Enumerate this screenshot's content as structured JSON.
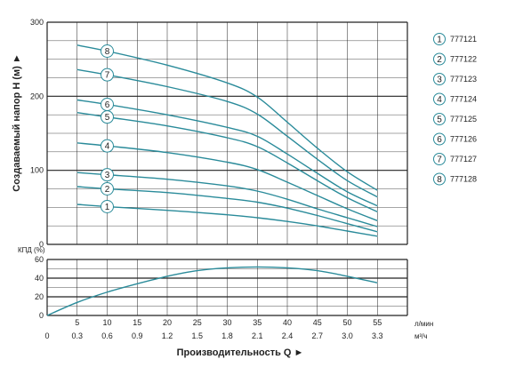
{
  "chart_data": [
    {
      "type": "line",
      "title": "",
      "ylabel": "Создаваемый напор Н (м)",
      "ylim": [
        0,
        300
      ],
      "yticks": [
        "0",
        "100",
        "200",
        "300"
      ],
      "xlim_lpm": [
        0,
        55
      ],
      "grid": true,
      "legend_position": "right",
      "series": [
        {
          "name": "777121",
          "marker": "1",
          "flow_lpm": [
            5,
            10,
            20,
            30,
            35,
            40,
            45,
            50,
            55
          ],
          "head": [
            54,
            51,
            46,
            40,
            36,
            31,
            25,
            18,
            11
          ]
        },
        {
          "name": "777122",
          "marker": "2",
          "flow_lpm": [
            5,
            10,
            20,
            30,
            35,
            40,
            45,
            50,
            55
          ],
          "head": [
            78,
            75,
            70,
            62,
            57,
            49,
            39,
            28,
            17
          ]
        },
        {
          "name": "777123",
          "marker": "3",
          "flow_lpm": [
            5,
            10,
            20,
            30,
            35,
            40,
            45,
            50,
            55
          ],
          "head": [
            97,
            94,
            88,
            79,
            72,
            61,
            48,
            36,
            24
          ]
        },
        {
          "name": "777124",
          "marker": "4",
          "flow_lpm": [
            5,
            10,
            20,
            30,
            35,
            40,
            45,
            50,
            55
          ],
          "head": [
            137,
            133,
            124,
            111,
            101,
            84,
            66,
            48,
            32
          ]
        },
        {
          "name": "777125",
          "marker": "5",
          "flow_lpm": [
            5,
            10,
            20,
            30,
            35,
            40,
            45,
            50,
            55
          ],
          "head": [
            178,
            172,
            160,
            144,
            132,
            110,
            86,
            63,
            44
          ]
        },
        {
          "name": "777126",
          "marker": "6",
          "flow_lpm": [
            5,
            10,
            20,
            30,
            35,
            40,
            45,
            50,
            55
          ],
          "head": [
            195,
            189,
            175,
            158,
            146,
            122,
            96,
            71,
            52
          ]
        },
        {
          "name": "777127",
          "marker": "7",
          "flow_lpm": [
            5,
            10,
            20,
            30,
            35,
            40,
            45,
            50,
            55
          ],
          "head": [
            236,
            229,
            213,
            193,
            176,
            146,
            115,
            86,
            64
          ]
        },
        {
          "name": "777128",
          "marker": "8",
          "flow_lpm": [
            5,
            10,
            20,
            30,
            35,
            40,
            45,
            50,
            55
          ],
          "head": [
            269,
            261,
            242,
            218,
            199,
            165,
            130,
            98,
            73
          ]
        }
      ]
    },
    {
      "type": "line",
      "title": "",
      "ylabel": "КПД (%)",
      "ylim": [
        0,
        60
      ],
      "yticks": [
        "0",
        "20",
        "40",
        "60"
      ],
      "xlim_lpm": [
        0,
        55
      ],
      "grid": true,
      "series": [
        {
          "name": "",
          "flow_lpm": [
            0,
            5,
            10,
            15,
            20,
            25,
            30,
            35,
            40,
            45,
            50,
            55
          ],
          "efficiency": [
            0,
            14,
            25,
            34,
            42,
            48,
            51,
            52,
            51,
            48,
            42,
            35
          ]
        }
      ]
    }
  ],
  "x_axis": {
    "title": "Производительность Q ►",
    "lpm_ticks": [
      "5",
      "10",
      "15",
      "20",
      "25",
      "30",
      "35",
      "40",
      "45",
      "50",
      "55"
    ],
    "lpm_unit": "л/мин",
    "m3h_ticks": [
      "0",
      "0.3",
      "0.6",
      "0.9",
      "1.2",
      "1.5",
      "1.8",
      "2.1",
      "2.4",
      "2.7",
      "3.0",
      "3.3"
    ],
    "m3h_unit": "м³/ч"
  },
  "y_axis_title": "Создаваемый напор Н (м) ►",
  "efficiency_label": "КПД (%)",
  "legend": [
    {
      "num": "1",
      "label": "777121"
    },
    {
      "num": "2",
      "label": "777122"
    },
    {
      "num": "3",
      "label": "777123"
    },
    {
      "num": "4",
      "label": "777124"
    },
    {
      "num": "5",
      "label": "777125"
    },
    {
      "num": "6",
      "label": "777126"
    },
    {
      "num": "7",
      "label": "777127"
    },
    {
      "num": "8",
      "label": "777128"
    }
  ],
  "colors": {
    "curve": "#2a8b9a",
    "grid": "#222222",
    "marker_fill": "#ffffff",
    "marker_stroke": "#2a8b9a"
  }
}
